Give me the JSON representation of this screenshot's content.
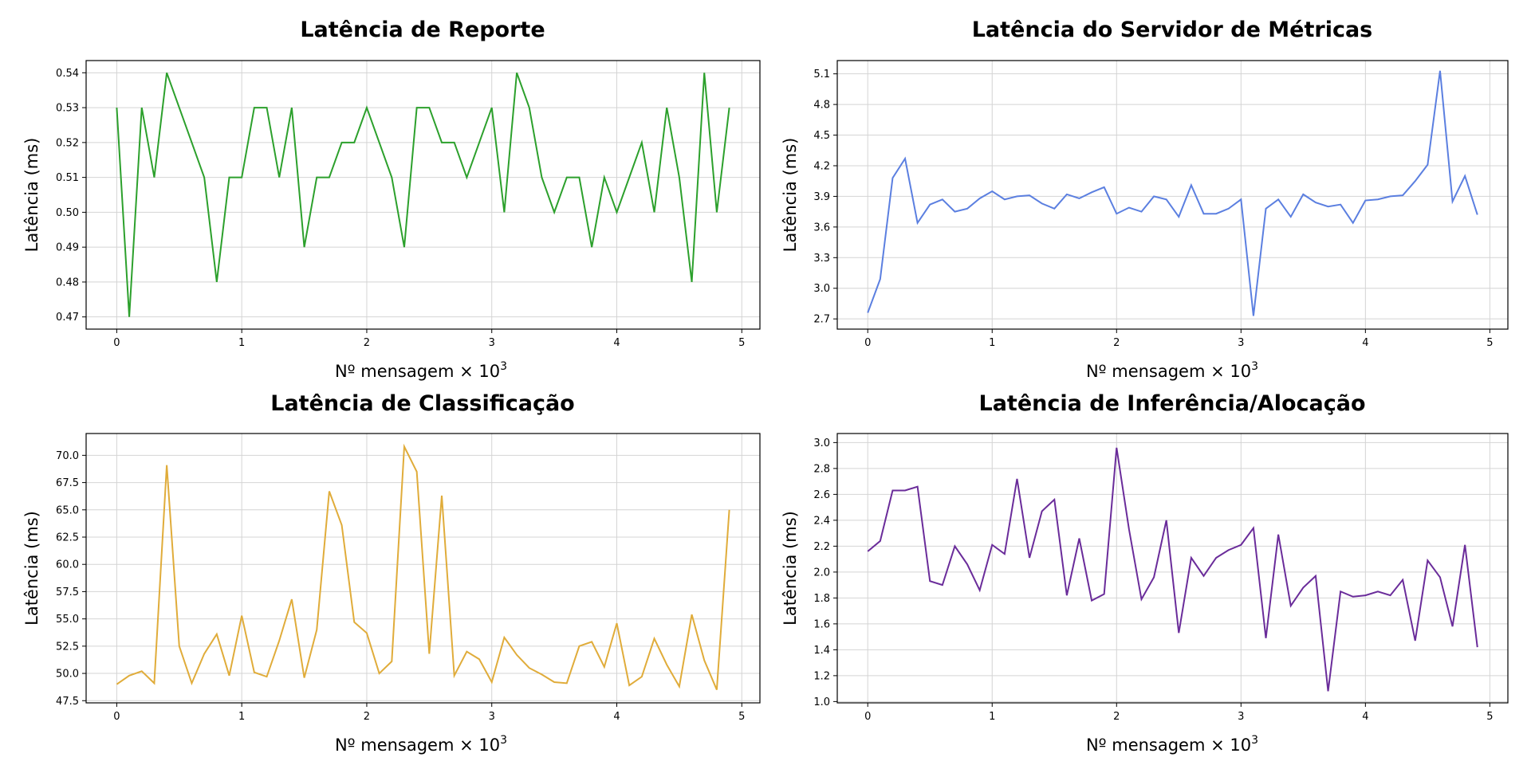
{
  "chart_data": [
    {
      "type": "line",
      "title": "Latência de Reporte",
      "xlabel": "Nº mensagem × 10",
      "xlabel_sup": "3",
      "ylabel": "Latência (ms)",
      "color": "#2ca02c",
      "xlim": [
        -0.245,
        5.145
      ],
      "ylim": [
        0.4665,
        0.5435
      ],
      "xticks": [
        0,
        1,
        2,
        3,
        4,
        5
      ],
      "xtick_labels": [
        "0",
        "1",
        "2",
        "3",
        "4",
        "5"
      ],
      "yticks": [
        0.47,
        0.48,
        0.49,
        0.5,
        0.51,
        0.52,
        0.53,
        0.54
      ],
      "ytick_labels": [
        "0.47",
        "0.48",
        "0.49",
        "0.50",
        "0.51",
        "0.52",
        "0.53",
        "0.54"
      ],
      "grid": true,
      "x": [
        0,
        0.1,
        0.2,
        0.3,
        0.4,
        0.5,
        0.6,
        0.7,
        0.8,
        0.9,
        1.0,
        1.1,
        1.2,
        1.3,
        1.4,
        1.5,
        1.6,
        1.7,
        1.8,
        1.9,
        2.0,
        2.1,
        2.2,
        2.3,
        2.4,
        2.5,
        2.6,
        2.7,
        2.8,
        2.9,
        3.0,
        3.1,
        3.2,
        3.3,
        3.4,
        3.5,
        3.6,
        3.7,
        3.8,
        3.9,
        4.0,
        4.1,
        4.2,
        4.3,
        4.4,
        4.5,
        4.6,
        4.7,
        4.8,
        4.9
      ],
      "y": [
        0.53,
        0.47,
        0.53,
        0.51,
        0.54,
        0.53,
        0.52,
        0.51,
        0.48,
        0.51,
        0.51,
        0.53,
        0.53,
        0.51,
        0.53,
        0.49,
        0.51,
        0.51,
        0.52,
        0.52,
        0.53,
        0.52,
        0.51,
        0.49,
        0.53,
        0.53,
        0.52,
        0.52,
        0.51,
        0.52,
        0.53,
        0.5,
        0.54,
        0.53,
        0.51,
        0.5,
        0.51,
        0.51,
        0.49,
        0.51,
        0.5,
        0.51,
        0.52,
        0.5,
        0.53,
        0.51,
        0.48,
        0.54,
        0.5,
        0.53
      ]
    },
    {
      "type": "line",
      "title": "Latência do Servidor de Métricas",
      "xlabel": "Nº mensagem × 10",
      "xlabel_sup": "3",
      "ylabel": "Latência (ms)",
      "color": "#5b7fe0",
      "xlim": [
        -0.245,
        5.145
      ],
      "ylim": [
        2.6,
        5.23
      ],
      "xticks": [
        0,
        1,
        2,
        3,
        4,
        5
      ],
      "xtick_labels": [
        "0",
        "1",
        "2",
        "3",
        "4",
        "5"
      ],
      "yticks": [
        2.7,
        3.0,
        3.3,
        3.6,
        3.9,
        4.2,
        4.5,
        4.8,
        5.1
      ],
      "ytick_labels": [
        "2.7",
        "3.0",
        "3.3",
        "3.6",
        "3.9",
        "4.2",
        "4.5",
        "4.8",
        "5.1"
      ],
      "grid": true,
      "x": [
        0,
        0.1,
        0.2,
        0.3,
        0.4,
        0.5,
        0.6,
        0.7,
        0.8,
        0.9,
        1.0,
        1.1,
        1.2,
        1.3,
        1.4,
        1.5,
        1.6,
        1.7,
        1.8,
        1.9,
        2.0,
        2.1,
        2.2,
        2.3,
        2.4,
        2.5,
        2.6,
        2.7,
        2.8,
        2.9,
        3.0,
        3.1,
        3.2,
        3.3,
        3.4,
        3.5,
        3.6,
        3.7,
        3.8,
        3.9,
        4.0,
        4.1,
        4.2,
        4.3,
        4.4,
        4.5,
        4.6,
        4.7,
        4.8,
        4.9
      ],
      "y": [
        2.76,
        3.09,
        4.08,
        4.27,
        3.64,
        3.82,
        3.87,
        3.75,
        3.78,
        3.88,
        3.95,
        3.87,
        3.9,
        3.91,
        3.83,
        3.78,
        3.92,
        3.88,
        3.94,
        3.99,
        3.73,
        3.79,
        3.75,
        3.9,
        3.87,
        3.7,
        4.01,
        3.73,
        3.73,
        3.78,
        3.87,
        2.73,
        3.78,
        3.87,
        3.7,
        3.92,
        3.84,
        3.8,
        3.82,
        3.64,
        3.86,
        3.87,
        3.9,
        3.91,
        4.05,
        4.21,
        5.13,
        3.85,
        4.1,
        3.72
      ]
    },
    {
      "type": "line",
      "title": "Latência de Classificação",
      "xlabel": "Nº mensagem × 10",
      "xlabel_sup": "3",
      "ylabel": "Latência (ms)",
      "color": "#e0ac3a",
      "xlim": [
        -0.245,
        5.145
      ],
      "ylim": [
        47.3,
        72.0
      ],
      "xticks": [
        0,
        1,
        2,
        3,
        4,
        5
      ],
      "xtick_labels": [
        "0",
        "1",
        "2",
        "3",
        "4",
        "5"
      ],
      "yticks": [
        47.5,
        50.0,
        52.5,
        55.0,
        57.5,
        60.0,
        62.5,
        65.0,
        67.5,
        70.0
      ],
      "ytick_labels": [
        "47.5",
        "50.0",
        "52.5",
        "55.0",
        "57.5",
        "60.0",
        "62.5",
        "65.0",
        "67.5",
        "70.0"
      ],
      "grid": true,
      "x": [
        0,
        0.1,
        0.2,
        0.3,
        0.4,
        0.5,
        0.6,
        0.7,
        0.8,
        0.9,
        1.0,
        1.1,
        1.2,
        1.3,
        1.4,
        1.5,
        1.6,
        1.7,
        1.8,
        1.9,
        2.0,
        2.1,
        2.2,
        2.3,
        2.4,
        2.5,
        2.6,
        2.7,
        2.8,
        2.9,
        3.0,
        3.1,
        3.2,
        3.3,
        3.4,
        3.5,
        3.6,
        3.7,
        3.8,
        3.9,
        4.0,
        4.1,
        4.2,
        4.3,
        4.4,
        4.5,
        4.6,
        4.7,
        4.8,
        4.9
      ],
      "y": [
        49.0,
        49.8,
        50.2,
        49.1,
        69.1,
        52.5,
        49.1,
        51.8,
        53.6,
        49.8,
        55.3,
        50.1,
        49.7,
        53.0,
        56.8,
        49.6,
        54.0,
        66.7,
        63.6,
        54.7,
        53.7,
        50.0,
        51.1,
        70.8,
        68.5,
        51.8,
        66.3,
        49.8,
        52.0,
        51.3,
        49.2,
        53.3,
        51.7,
        50.5,
        49.9,
        49.2,
        49.1,
        52.5,
        52.9,
        50.6,
        54.6,
        48.9,
        49.7,
        53.2,
        50.8,
        48.8,
        55.4,
        51.2,
        48.5,
        65.0
      ]
    },
    {
      "type": "line",
      "title": "Latência de Inferência/Alocação",
      "xlabel": "Nº mensagem × 10",
      "xlabel_sup": "3",
      "ylabel": "Latência (ms)",
      "color": "#6a2c9a",
      "xlim": [
        -0.245,
        5.145
      ],
      "ylim": [
        0.99,
        3.07
      ],
      "xticks": [
        0,
        1,
        2,
        3,
        4,
        5
      ],
      "xtick_labels": [
        "0",
        "1",
        "2",
        "3",
        "4",
        "5"
      ],
      "yticks": [
        1.0,
        1.2,
        1.4,
        1.6,
        1.8,
        2.0,
        2.2,
        2.4,
        2.6,
        2.8,
        3.0
      ],
      "ytick_labels": [
        "1.0",
        "1.2",
        "1.4",
        "1.6",
        "1.8",
        "2.0",
        "2.2",
        "2.4",
        "2.6",
        "2.8",
        "3.0"
      ],
      "grid": true,
      "x": [
        0,
        0.1,
        0.2,
        0.3,
        0.4,
        0.5,
        0.6,
        0.7,
        0.8,
        0.9,
        1.0,
        1.1,
        1.2,
        1.3,
        1.4,
        1.5,
        1.6,
        1.7,
        1.8,
        1.9,
        2.0,
        2.1,
        2.2,
        2.3,
        2.4,
        2.5,
        2.6,
        2.7,
        2.8,
        2.9,
        3.0,
        3.1,
        3.2,
        3.3,
        3.4,
        3.5,
        3.6,
        3.7,
        3.8,
        3.9,
        4.0,
        4.1,
        4.2,
        4.3,
        4.4,
        4.5,
        4.6,
        4.7,
        4.8,
        4.9
      ],
      "y": [
        2.16,
        2.24,
        2.63,
        2.63,
        2.66,
        1.93,
        1.9,
        2.2,
        2.06,
        1.86,
        2.21,
        2.14,
        2.72,
        2.11,
        2.47,
        2.56,
        1.82,
        2.26,
        1.78,
        1.83,
        2.96,
        2.33,
        1.79,
        1.96,
        2.4,
        1.53,
        2.11,
        1.97,
        2.11,
        2.17,
        2.21,
        2.34,
        1.49,
        2.29,
        1.74,
        1.88,
        1.97,
        1.08,
        1.85,
        1.81,
        1.82,
        1.85,
        1.82,
        1.94,
        1.47,
        2.09,
        1.96,
        1.58,
        2.21,
        1.42
      ]
    }
  ]
}
